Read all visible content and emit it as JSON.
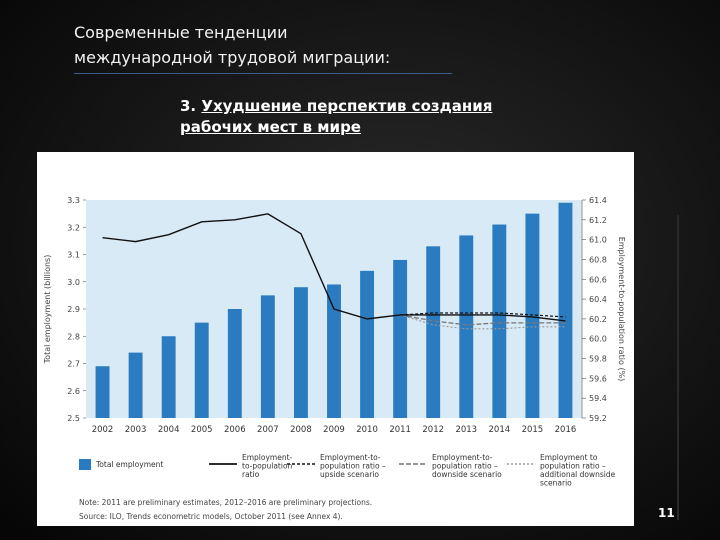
{
  "slide": {
    "title_line1": "Современные тенденции",
    "title_line2": "международной трудовой миграции:",
    "subtitle_prefix": "3.",
    "subtitle_line1": "Ухудшение перспектив создания",
    "subtitle_line2": "рабочих мест в мире",
    "page_number": "11"
  },
  "chart_data": {
    "type": "bar",
    "categories": [
      "2002",
      "2003",
      "2004",
      "2005",
      "2006",
      "2007",
      "2008",
      "2009",
      "2010",
      "2011",
      "2012",
      "2013",
      "2014",
      "2015",
      "2016"
    ],
    "ylabel": "Total employment (billions)",
    "ylabel_right": "Employment-to-population ratio (%)",
    "ylim": [
      2.5,
      3.3
    ],
    "y_ticks": [
      "2.5",
      "2.6",
      "2.7",
      "2.8",
      "2.9",
      "3.0",
      "3.1",
      "3.2",
      "3.3"
    ],
    "ylim_right": [
      59.2,
      61.4
    ],
    "y2_ticks": [
      "59.2",
      "59.4",
      "59.6",
      "59.8",
      "60.0",
      "60.2",
      "60.4",
      "60.6",
      "60.8",
      "61.0",
      "61.2",
      "61.4"
    ],
    "colors": {
      "bar": "#2b7bc0",
      "plot_bg": "#d9eaf7",
      "line": "#111111",
      "upside": "#111111",
      "downside": "#777777",
      "additional": "#999999"
    },
    "series": [
      {
        "name": "Total employment",
        "type": "bar",
        "values": [
          2.69,
          2.74,
          2.8,
          2.85,
          2.9,
          2.95,
          2.98,
          2.99,
          3.04,
          3.08,
          3.13,
          3.17,
          3.21,
          3.25,
          3.29
        ]
      },
      {
        "name": "Employment-to-population ratio",
        "type": "line",
        "x": [
          "2002",
          "2003",
          "2004",
          "2005",
          "2006",
          "2007",
          "2008",
          "2009",
          "2010",
          "2011",
          "2012",
          "2013",
          "2014",
          "2015",
          "2016"
        ],
        "values": [
          61.02,
          60.98,
          61.05,
          61.18,
          61.2,
          61.26,
          61.06,
          60.3,
          60.2,
          60.24,
          60.24,
          60.24,
          60.24,
          60.22,
          60.18
        ]
      },
      {
        "name": "Employment-to-population ratio – upside scenario",
        "type": "line",
        "x": [
          "2011",
          "2012",
          "2013",
          "2014",
          "2015",
          "2016"
        ],
        "values": [
          60.24,
          60.26,
          60.26,
          60.26,
          60.24,
          60.22
        ]
      },
      {
        "name": "Employment-to-population ratio – downside scenario",
        "type": "line",
        "x": [
          "2011",
          "2012",
          "2013",
          "2014",
          "2015",
          "2016"
        ],
        "values": [
          60.24,
          60.18,
          60.14,
          60.16,
          60.16,
          60.16
        ]
      },
      {
        "name": "Employment to population ratio – additional downside scenario",
        "type": "line",
        "x": [
          "2011",
          "2012",
          "2013",
          "2014",
          "2015",
          "2016"
        ],
        "values": [
          60.24,
          60.14,
          60.1,
          60.1,
          60.12,
          60.12
        ]
      }
    ],
    "legend": [
      "Total employment",
      "Employment-to-population ratio",
      "Employment-to-population ratio – upside scenario",
      "Employment-to-population ratio – downside scenario",
      "Employment to population ratio – additional downside scenario"
    ],
    "legend_position": "bottom",
    "note": "Note: 2011 are preliminary estimates, 2012–2016 are preliminary projections.",
    "source": "Source: ILO, Trends econometric models, October 2011 (see Annex 4)."
  }
}
